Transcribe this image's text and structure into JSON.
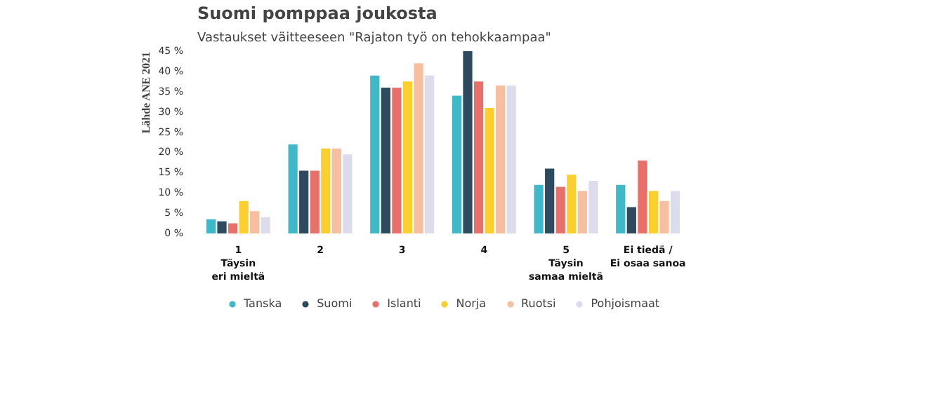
{
  "chart_data": {
    "type": "bar",
    "title": "Suomi pomppaa joukosta",
    "subtitle": "Vastaukset väitteeseen \"Rajaton työ on tehokkaampaa\"",
    "annotations": [
      "Lähde ANE 2021"
    ],
    "categories": [
      "1\nTäysin\neri mieltä",
      "2",
      "3",
      "4",
      "5\nTäysin\nsamaa mieltä",
      "Ei tiedä /\nEi osaa sanoa"
    ],
    "series": [
      {
        "name": "Tanska",
        "color": "#3fb8c8",
        "values": [
          3.5,
          22,
          39,
          34,
          12,
          12
        ]
      },
      {
        "name": "Suomi",
        "color": "#2e4a5e",
        "values": [
          3,
          15.5,
          36,
          45,
          16,
          6.5
        ]
      },
      {
        "name": "Islanti",
        "color": "#e8706a",
        "values": [
          2.5,
          15.5,
          36,
          37.5,
          11.5,
          18
        ]
      },
      {
        "name": "Norja",
        "color": "#fbcf2e",
        "values": [
          8,
          21,
          37.5,
          31,
          14.5,
          10.5
        ]
      },
      {
        "name": "Ruotsi",
        "color": "#f7bfa0",
        "values": [
          5.5,
          21,
          42,
          36.5,
          10.5,
          8
        ]
      },
      {
        "name": "Pohjoismaat",
        "color": "#dcdcec",
        "values": [
          4,
          19.5,
          39,
          36.5,
          13,
          10.5
        ]
      }
    ],
    "ylim": [
      0,
      45
    ],
    "yticks": [
      {
        "value": 0,
        "label": "0 %"
      },
      {
        "value": 5,
        "label": "5 %"
      },
      {
        "value": 10,
        "label": "10 %"
      },
      {
        "value": 15,
        "label": "15 %"
      },
      {
        "value": 20,
        "label": "20 %"
      },
      {
        "value": 25,
        "label": "25 %"
      },
      {
        "value": 30,
        "label": "30 %"
      },
      {
        "value": 35,
        "label": "35 %"
      },
      {
        "value": 40,
        "label": "40 %"
      },
      {
        "value": 45,
        "label": "45 %"
      }
    ],
    "grid": false,
    "legend": "bottom"
  }
}
